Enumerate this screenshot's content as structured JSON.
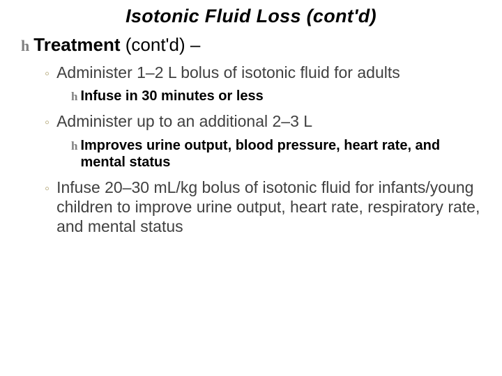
{
  "title": "Isotonic Fluid Loss (cont'd)",
  "lvl1": {
    "strong": "Treatment",
    "rest": " (cont'd) –"
  },
  "items": [
    {
      "text": "Administer 1–2 L bolus of isotonic fluid for adults",
      "sub": "Infuse in 30 minutes or less"
    },
    {
      "text": "Administer up to an additional 2–3 L",
      "sub": "Improves urine output, blood pressure, heart rate, and mental status"
    },
    {
      "text": "Infuse 20–30 mL/kg bolus of isotonic fluid for infants/young children to improve urine output, heart rate, respiratory rate, and mental status",
      "sub": null
    }
  ],
  "bullets": {
    "script": "h",
    "ring": "◦"
  }
}
